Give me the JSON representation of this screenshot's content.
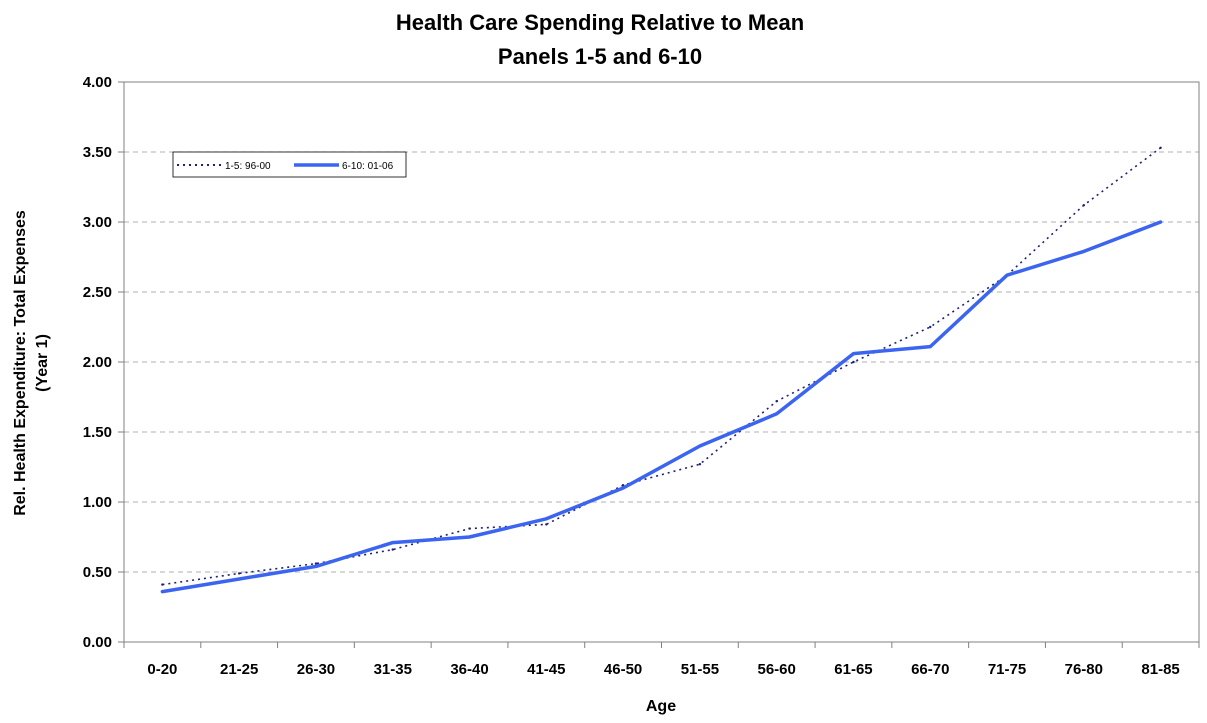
{
  "chart_data": {
    "type": "line",
    "title": [
      "Health Care Spending Relative to Mean",
      "Panels 1-5 and 6-10"
    ],
    "xlabel": "Age",
    "ylabel": [
      "Rel. Health Expenditure: Total Expenses",
      "(Year 1)"
    ],
    "categories": [
      "0-20",
      "21-25",
      "26-30",
      "31-35",
      "36-40",
      "41-45",
      "46-50",
      "51-55",
      "56-60",
      "61-65",
      "66-70",
      "71-75",
      "76-80",
      "81-85"
    ],
    "ylim": [
      0,
      4
    ],
    "ytick_step": 0.5,
    "ytick_labels": [
      "0.00",
      "0.50",
      "1.00",
      "1.50",
      "2.00",
      "2.50",
      "3.00",
      "3.50",
      "4.00"
    ],
    "grid": true,
    "legend_position": "top-left",
    "series": [
      {
        "name": "1-5: 96-00",
        "style": "dotted",
        "color": "#1f1f7a",
        "values": [
          0.41,
          0.49,
          0.56,
          0.66,
          0.81,
          0.84,
          1.12,
          1.27,
          1.72,
          2.0,
          2.25,
          2.62,
          3.12,
          3.53
        ]
      },
      {
        "name": "6-10: 01-06",
        "style": "solid",
        "color": "#3b64f0",
        "values": [
          0.36,
          0.45,
          0.54,
          0.71,
          0.75,
          0.88,
          1.1,
          1.4,
          1.63,
          2.06,
          2.11,
          2.62,
          2.79,
          3.0
        ]
      }
    ]
  }
}
